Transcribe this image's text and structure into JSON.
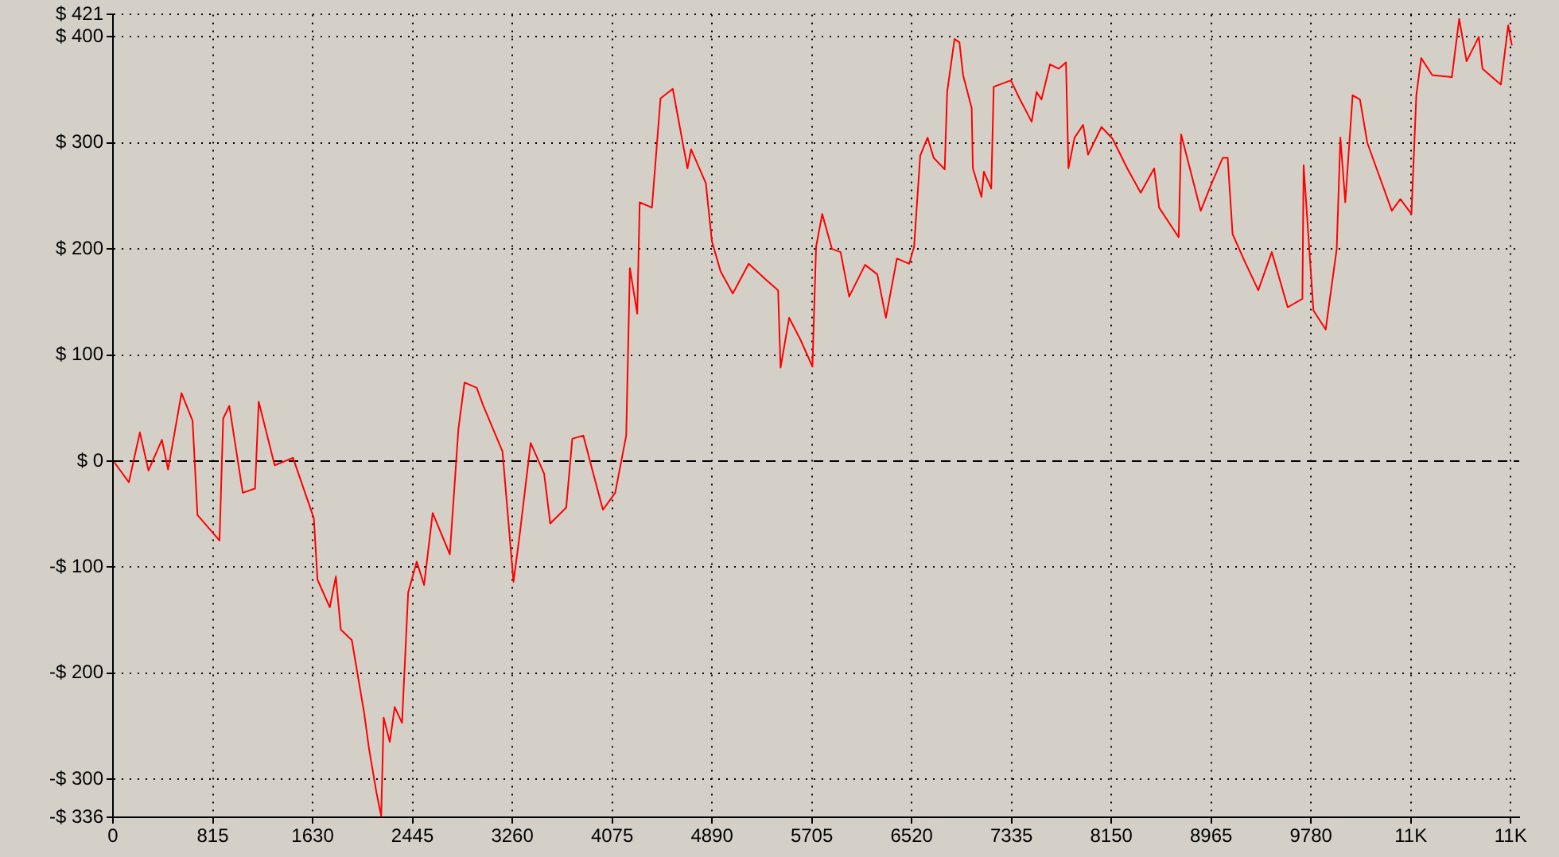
{
  "chart_data": {
    "type": "line",
    "x": [
      10,
      130,
      220,
      290,
      400,
      450,
      560,
      650,
      690,
      870,
      900,
      950,
      1060,
      1160,
      1190,
      1320,
      1470,
      1640,
      1670,
      1770,
      1820,
      1860,
      1950,
      2050,
      2090,
      2150,
      2190,
      2210,
      2260,
      2300,
      2360,
      2410,
      2480,
      2540,
      2610,
      2750,
      2820,
      2870,
      2970,
      3020,
      3180,
      3270,
      3320,
      3410,
      3520,
      3570,
      3700,
      3750,
      3840,
      3910,
      4000,
      4100,
      4190,
      4220,
      4280,
      4300,
      4400,
      4470,
      4570,
      4690,
      4720,
      4840,
      4890,
      4960,
      5060,
      5190,
      5330,
      5430,
      5450,
      5520,
      5610,
      5710,
      5740,
      5790,
      5870,
      5940,
      6010,
      6140,
      6240,
      6310,
      6400,
      6500,
      6540,
      6590,
      6650,
      6700,
      6790,
      6810,
      6870,
      6910,
      6940,
      7010,
      7020,
      7090,
      7110,
      7170,
      7190,
      7330,
      7400,
      7500,
      7540,
      7580,
      7650,
      7720,
      7780,
      7800,
      7850,
      7920,
      7960,
      8070,
      8160,
      8280,
      8390,
      8500,
      8540,
      8700,
      8720,
      8880,
      8970,
      9060,
      9100,
      9140,
      9240,
      9350,
      9460,
      9590,
      9710,
      9720,
      9800,
      9900,
      9990,
      10020,
      10060,
      10120,
      10180,
      10240,
      10440,
      10510,
      10600,
      10640,
      10680,
      10770,
      10930,
      10990,
      11050,
      11150,
      11180,
      11330,
      11390,
      11420
    ],
    "series": [
      {
        "color": "#ff0000",
        "values": [
          -1,
          -20,
          27,
          -9,
          20,
          -8,
          64,
          38,
          -51,
          -75,
          40,
          52,
          -30,
          -26,
          56,
          -4,
          3,
          -54,
          -112,
          -138,
          -109,
          -159,
          -169,
          -237,
          -271,
          -312,
          -335,
          -242,
          -265,
          -232,
          -247,
          -124,
          -95,
          -117,
          -49,
          -88,
          30,
          74,
          69,
          53,
          9,
          -114,
          -70,
          17,
          -12,
          -59,
          -44,
          21,
          24,
          -7,
          -46,
          -30,
          24,
          182,
          139,
          244,
          239,
          342,
          351,
          276,
          294,
          262,
          207,
          179,
          158,
          186,
          171,
          161,
          88,
          135,
          115,
          89,
          202,
          233,
          200,
          197,
          155,
          185,
          176,
          135,
          191,
          186,
          202,
          288,
          305,
          286,
          275,
          348,
          398,
          395,
          364,
          333,
          276,
          249,
          273,
          257,
          353,
          359,
          342,
          320,
          348,
          341,
          374,
          370,
          376,
          276,
          305,
          317,
          289,
          315,
          304,
          276,
          253,
          276,
          239,
          211,
          308,
          236,
          262,
          286,
          286,
          214,
          188,
          161,
          197,
          145,
          153,
          279,
          142,
          124,
          200,
          305,
          244,
          345,
          341,
          300,
          236,
          247,
          233,
          345,
          380,
          364,
          362,
          417,
          377,
          400,
          370,
          355,
          411,
          392
        ]
      }
    ],
    "xlim": [
      0,
      11480
    ],
    "xticks": [
      0,
      815,
      1630,
      2445,
      3260,
      4075,
      4890,
      5705,
      6520,
      7335,
      8150,
      8965,
      9780,
      {
        "value": 10595,
        "label": "11K"
      },
      {
        "value": 11410,
        "label": "11K"
      }
    ],
    "ylim": [
      -336,
      421
    ],
    "yticks": [
      {
        "value": -336,
        "label": "-$ 336"
      },
      {
        "value": -300,
        "label": "-$ 300"
      },
      {
        "value": -200,
        "label": "-$ 200"
      },
      {
        "value": -100,
        "label": "-$ 100"
      },
      {
        "value": 0,
        "label": "$ 0"
      },
      {
        "value": 100,
        "label": "$ 100"
      },
      {
        "value": 200,
        "label": "$ 200"
      },
      {
        "value": 300,
        "label": "$ 300"
      },
      {
        "value": 400,
        "label": "$ 400"
      },
      {
        "value": 421,
        "label": "$ 421"
      }
    ],
    "grid": true,
    "legend": false,
    "marker": "none",
    "line_style": "solid"
  }
}
